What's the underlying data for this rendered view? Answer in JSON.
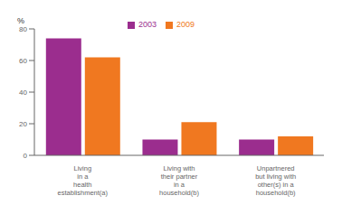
{
  "chart_data": {
    "type": "bar",
    "categories": [
      "Living\nin a\nhealth\nestablishment(a)",
      "Living with\ntheir partner\nin a\nhousehold(b)",
      "Unpartnered\nbut living with\nother(s) in a\nhousehold(b)"
    ],
    "series": [
      {
        "name": "2003",
        "color": "#9B2D8E",
        "values": [
          74,
          10,
          10
        ]
      },
      {
        "name": "2009",
        "color": "#F07820",
        "values": [
          62,
          21,
          12
        ]
      }
    ],
    "ylabel": "%",
    "ylim": [
      0,
      80
    ],
    "yticks": [
      0,
      20,
      40,
      60,
      80
    ],
    "grid": false,
    "legend": "top"
  }
}
